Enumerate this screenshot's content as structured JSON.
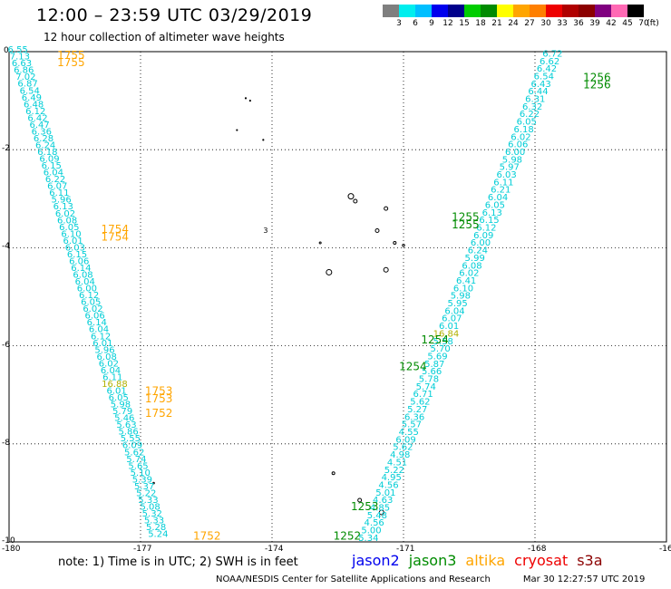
{
  "title": "12:00 – 23:59 UTC 03/29/2019",
  "subtitle": "12 hour collection of altimeter wave heights",
  "legend": {
    "colors": [
      "#7f7f7f",
      "#00eeee",
      "#00bfff",
      "#0000ee",
      "#00008b",
      "#00cd00",
      "#008b00",
      "#ffff00",
      "#ffa500",
      "#ff7f00",
      "#ee0000",
      "#b00000",
      "#8b0000",
      "#800080",
      "#ff69b4",
      "#000000"
    ],
    "labels": [
      "3",
      "6",
      "9",
      "12",
      "15",
      "18",
      "21",
      "24",
      "27",
      "30",
      "33",
      "36",
      "39",
      "42",
      "45",
      "70",
      "(ft)"
    ]
  },
  "axes": {
    "x_ticks": [
      "-180",
      "-177",
      "-174",
      "-171",
      "-168",
      "-165"
    ],
    "y_ticks": [
      "0",
      "-2",
      "-4",
      "-6",
      "-8",
      "-10"
    ],
    "xlim": [
      -180,
      -165
    ],
    "ylim": [
      -10,
      0
    ]
  },
  "swath_colors": {
    "jason3": "#008b00",
    "altika": "#ffa500",
    "cyan": "#00cdd6",
    "yellow": "#b0b000",
    "coast": "#000000"
  },
  "swath_left": {
    "start": [
      -179.8,
      -0.02
    ],
    "end": [
      -176.6,
      -9.9
    ],
    "values": [
      "6.55",
      "7.13",
      "6.63",
      "6.86",
      "7.02",
      "6.87",
      "6.54",
      "6.49",
      "6.48",
      "6.12",
      "6.42",
      "6.47",
      "6.36",
      "6.28",
      "6.24",
      "6.18",
      "6.09",
      "6.15",
      "6.04",
      "6.22",
      "6.07",
      "6.11",
      "5.96",
      "6.13",
      "6.02",
      "6.08",
      "6.05",
      "6.10",
      "6.01",
      "6.03",
      "6.15",
      "6.06",
      "6.14",
      "6.08",
      "6.04",
      "6.00",
      "6.12",
      "6.05",
      "6.02",
      "6.06",
      "6.14",
      "6.04",
      "6.12",
      "6.01",
      "5.96",
      "6.08",
      "6.02",
      "6.04",
      "6.11",
      "16.88",
      "6.01",
      "6.05",
      "5.98",
      "5.79",
      "5.46",
      "5.63",
      "5.86",
      "5.55",
      "6.09",
      "5.62",
      "5.74",
      "5.65",
      "5.10",
      "5.39",
      "5.37",
      "5.22",
      "5.33",
      "5.08",
      "5.32",
      "5.33",
      "5.28",
      "5.24"
    ]
  },
  "swath_right": {
    "start": [
      -167.6,
      -0.1
    ],
    "end": [
      -171.8,
      -9.98
    ],
    "values": [
      "6.72",
      "6.62",
      "6.42",
      "6.54",
      "6.43",
      "6.44",
      "6.31",
      "6.32",
      "6.22",
      "6.05",
      "6.18",
      "6.02",
      "6.06",
      "6.00",
      "5.98",
      "5.97",
      "6.03",
      "6.11",
      "6.21",
      "6.04",
      "6.05",
      "6.13",
      "6.15",
      "6.12",
      "6.09",
      "6.00",
      "6.24",
      "5.99",
      "6.08",
      "6.02",
      "6.41",
      "6.10",
      "5.98",
      "5.95",
      "6.04",
      "6.07",
      "6.01",
      "16.84",
      "5.58",
      "5.70",
      "5.69",
      "5.87",
      "5.66",
      "5.78",
      "5.74",
      "6.71",
      "5.62",
      "5.27",
      "6.36",
      "5.57",
      "4.55",
      "6.09",
      "5.62",
      "4.98",
      "4.51",
      "5.22",
      "4.95",
      "4.56",
      "5.01",
      "4.63",
      "4.85",
      "5.48",
      "4.56",
      "5.00",
      "5.34"
    ]
  },
  "time_labels": [
    {
      "text": "1755",
      "x": -178.9,
      "y": -0.15,
      "sat": "altika"
    },
    {
      "text": "1755",
      "x": -178.9,
      "y": -0.3,
      "sat": "altika"
    },
    {
      "text": "1754",
      "x": -177.9,
      "y": -3.7,
      "sat": "altika"
    },
    {
      "text": "1754",
      "x": -177.9,
      "y": -3.85,
      "sat": "altika"
    },
    {
      "text": "1753",
      "x": -176.9,
      "y": -7.0,
      "sat": "altika"
    },
    {
      "text": "1753",
      "x": -176.9,
      "y": -7.15,
      "sat": "altika"
    },
    {
      "text": "1752",
      "x": -176.9,
      "y": -7.45,
      "sat": "altika"
    },
    {
      "text": "1752",
      "x": -175.8,
      "y": -9.95,
      "sat": "altika"
    },
    {
      "text": "1256",
      "x": -166.9,
      "y": -0.6,
      "sat": "jason3"
    },
    {
      "text": "1256",
      "x": -166.9,
      "y": -0.75,
      "sat": "jason3"
    },
    {
      "text": "1255",
      "x": -169.9,
      "y": -3.45,
      "sat": "jason3"
    },
    {
      "text": "1255",
      "x": -169.9,
      "y": -3.6,
      "sat": "jason3"
    },
    {
      "text": "1254",
      "x": -170.6,
      "y": -5.95,
      "sat": "jason3"
    },
    {
      "text": "1254",
      "x": -171.1,
      "y": -6.5,
      "sat": "jason3"
    },
    {
      "text": "1253",
      "x": -172.2,
      "y": -9.35,
      "sat": "jason3"
    },
    {
      "text": "1252",
      "x": -172.6,
      "y": -9.95,
      "sat": "jason3"
    }
  ],
  "stray_labels": [
    {
      "text": "3",
      "x": -174.2,
      "y": -3.7
    }
  ],
  "islands": [
    {
      "x": -174.6,
      "y": -0.95,
      "r": 0.6
    },
    {
      "x": -174.5,
      "y": -1.0,
      "r": 0.6
    },
    {
      "x": -174.8,
      "y": -1.6,
      "r": 0.6
    },
    {
      "x": -174.2,
      "y": -1.8,
      "r": 0.6
    },
    {
      "x": -172.9,
      "y": -3.9,
      "r": 1
    },
    {
      "x": -172.2,
      "y": -2.95,
      "r": 3
    },
    {
      "x": -172.1,
      "y": -3.05,
      "r": 2
    },
    {
      "x": -171.4,
      "y": -3.2,
      "r": 2
    },
    {
      "x": -171.6,
      "y": -3.65,
      "r": 2
    },
    {
      "x": -171.2,
      "y": -3.9,
      "r": 1.5
    },
    {
      "x": -171.0,
      "y": -3.95,
      "r": 1.2
    },
    {
      "x": -172.7,
      "y": -4.5,
      "r": 3
    },
    {
      "x": -171.4,
      "y": -4.45,
      "r": 2.5
    },
    {
      "x": -172.6,
      "y": -8.6,
      "r": 1.5
    },
    {
      "x": -172.0,
      "y": -9.15,
      "r": 2
    },
    {
      "x": -171.5,
      "y": -9.4,
      "r": 2.5
    },
    {
      "x": -176.7,
      "y": -8.8,
      "r": 0.8
    }
  ],
  "note": "note:  1) Time is in UTC;  2) SWH is in feet",
  "satellites": [
    {
      "name": "jason2",
      "color": "#0000ee"
    },
    {
      "name": "jason3",
      "color": "#008b00"
    },
    {
      "name": "altika",
      "color": "#ffa500"
    },
    {
      "name": "cryosat",
      "color": "#ee0000"
    },
    {
      "name": "s3a",
      "color": "#8b0000"
    }
  ],
  "footer": {
    "source": "NOAA/NESDIS Center for Satellite Applications and Research",
    "timestamp": "Mar 30 12:27:57 UTC 2019"
  }
}
